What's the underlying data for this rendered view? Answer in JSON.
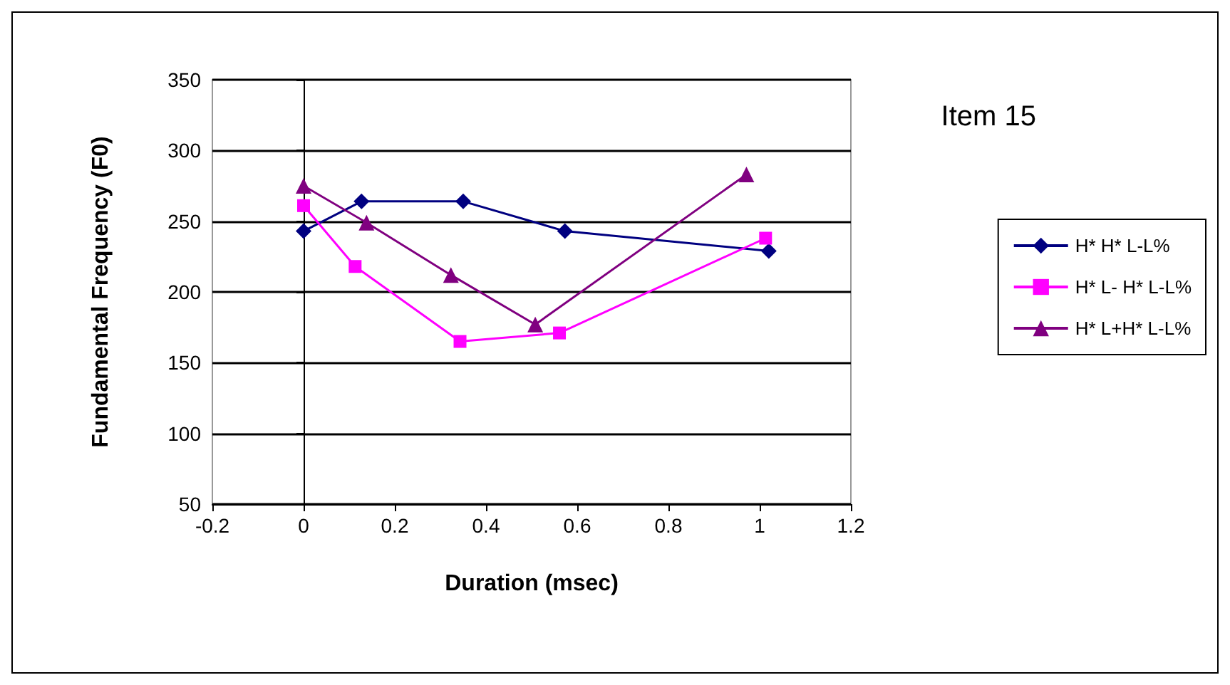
{
  "chart_data": {
    "type": "line",
    "title": "Item 15",
    "xlabel": "Duration (msec)",
    "ylabel": "Fundamental Frequency (F0)",
    "xlim": [
      -0.2,
      1.2
    ],
    "xticks": [
      -0.2,
      0,
      0.2,
      0.4,
      0.6,
      0.8,
      1,
      1.2
    ],
    "ylim": [
      50,
      350
    ],
    "yticks": [
      50,
      100,
      150,
      200,
      250,
      300,
      350
    ],
    "grid": "y",
    "legend": "right",
    "line_style": "solid",
    "series": [
      {
        "name": "H* H* L-L%",
        "color": "#000080",
        "marker": "diamond",
        "x": [
          0,
          0.127,
          0.35,
          0.573,
          1.02
        ],
        "values": [
          243,
          264,
          264,
          243,
          229
        ]
      },
      {
        "name": "H* L- H* L-L%",
        "color": "#ff00ff",
        "marker": "square",
        "x": [
          0,
          0.113,
          0.343,
          0.561,
          1.013
        ],
        "values": [
          261,
          218,
          165,
          171,
          238
        ]
      },
      {
        "name": "H* L+H* L-L%",
        "color": "#800080",
        "marker": "triangle",
        "x": [
          0,
          0.138,
          0.323,
          0.508,
          0.971
        ],
        "values": [
          275,
          249,
          212,
          177,
          283
        ]
      }
    ]
  }
}
